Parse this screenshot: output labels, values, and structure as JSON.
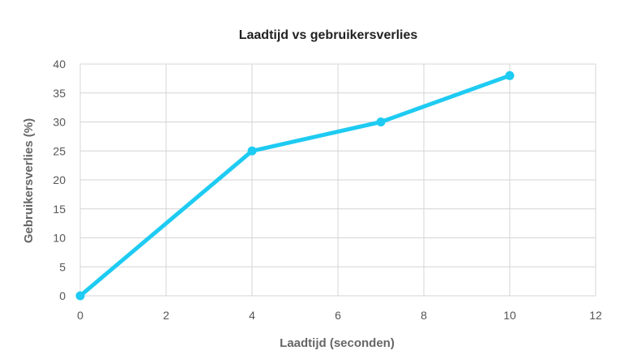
{
  "chart_data": {
    "type": "line",
    "title": "Laadtijd vs gebruikersverlies",
    "xlabel": "Laadtijd (seconden)",
    "ylabel": "Gebruikersverlies (%)",
    "xlim": [
      0,
      12
    ],
    "ylim": [
      0,
      40
    ],
    "x_ticks": [
      0,
      2,
      4,
      6,
      8,
      10,
      12
    ],
    "y_ticks": [
      0,
      5,
      10,
      15,
      20,
      25,
      30,
      35,
      40
    ],
    "grid": true,
    "legend": "none",
    "series": [
      {
        "color": "#1ecbf2",
        "x": [
          0,
          4,
          7,
          10
        ],
        "y": [
          0,
          25,
          30,
          38
        ]
      }
    ]
  }
}
